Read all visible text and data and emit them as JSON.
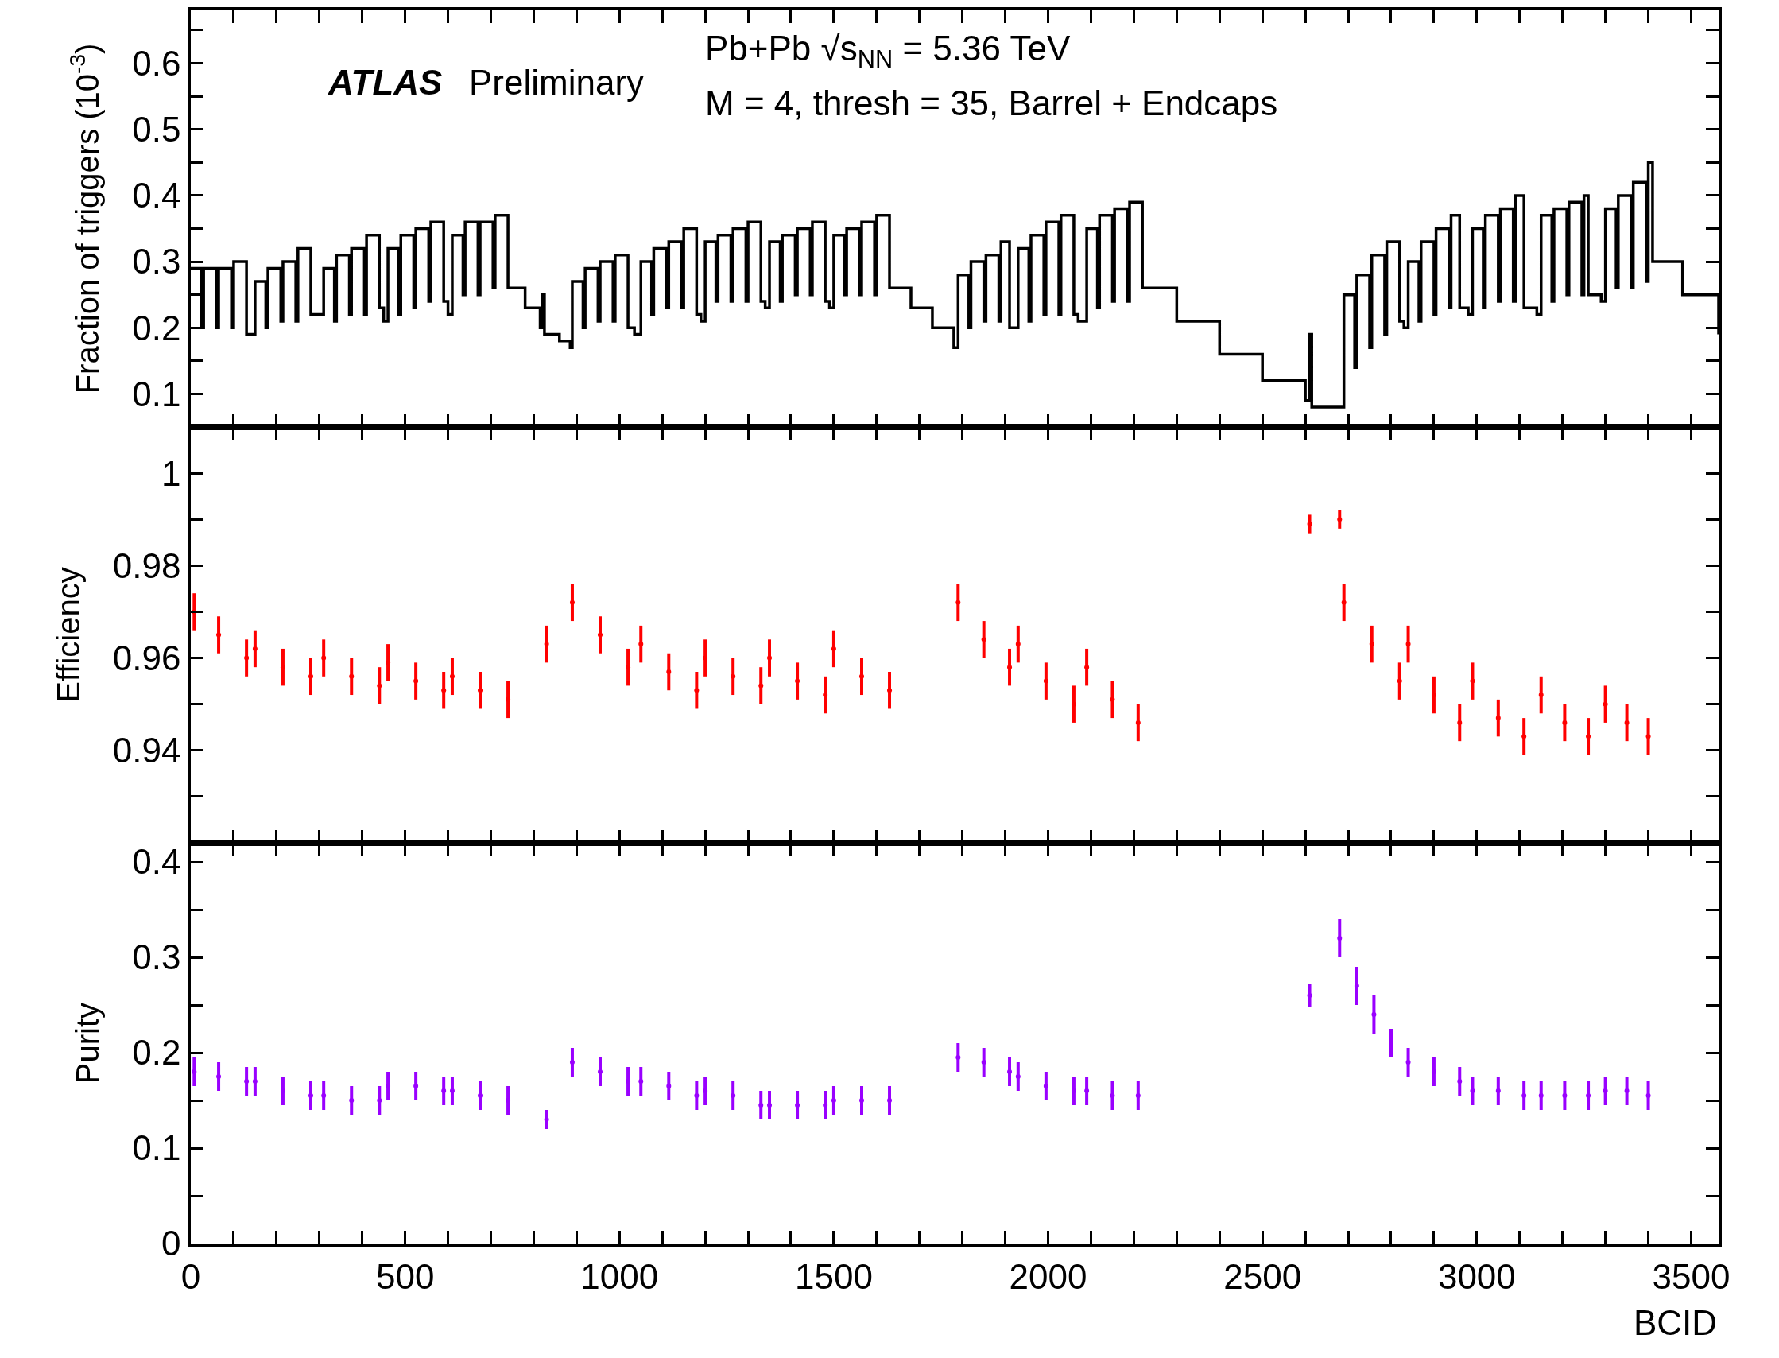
{
  "chart_data": [
    {
      "type": "step",
      "color": "#000000",
      "line_style": "solid",
      "ylabel": "Fraction of triggers (10$^{-3}$)",
      "annotations": [
        "ATLAS",
        "Preliminary",
        "Pb+Pb √s$_{NN}$ = 5.36 TeV",
        "M = 4, thresh = 35, Barrel + Endcaps"
      ],
      "x": [
        0,
        25,
        30,
        60,
        65,
        95,
        100,
        130,
        150,
        175,
        180,
        210,
        215,
        245,
        250,
        280,
        310,
        335,
        340,
        370,
        375,
        405,
        410,
        440,
        450,
        460,
        485,
        490,
        520,
        525,
        555,
        560,
        590,
        600,
        610,
        635,
        640,
        670,
        675,
        705,
        710,
        740,
        780,
        815,
        820,
        825,
        860,
        885,
        890,
        915,
        920,
        950,
        955,
        985,
        990,
        1020,
        1035,
        1050,
        1075,
        1080,
        1110,
        1115,
        1145,
        1150,
        1180,
        1190,
        1200,
        1225,
        1230,
        1260,
        1265,
        1295,
        1300,
        1330,
        1340,
        1350,
        1375,
        1380,
        1410,
        1415,
        1445,
        1450,
        1480,
        1490,
        1500,
        1525,
        1530,
        1560,
        1565,
        1595,
        1600,
        1630,
        1680,
        1730,
        1780,
        1790,
        1815,
        1820,
        1850,
        1855,
        1885,
        1890,
        1910,
        1930,
        1955,
        1960,
        1990,
        1995,
        2025,
        2030,
        2060,
        2070,
        2090,
        2115,
        2120,
        2150,
        2155,
        2185,
        2190,
        2220,
        2300,
        2400,
        2500,
        2600,
        2610,
        2615,
        2680,
        2690,
        2715,
        2720,
        2750,
        2755,
        2785,
        2790,
        2820,
        2830,
        2840,
        2865,
        2870,
        2900,
        2905,
        2935,
        2940,
        2960,
        2980,
        2990,
        3015,
        3020,
        3050,
        3055,
        3085,
        3090,
        3110,
        3140,
        3150,
        3175,
        3180,
        3210,
        3215,
        3245,
        3250,
        3260,
        3290,
        3300,
        3325,
        3330,
        3360,
        3365,
        3395,
        3400,
        3410,
        3480,
        3564
      ],
      "values": [
        0.29,
        0.2,
        0.29,
        0.2,
        0.29,
        0.2,
        0.3,
        0.19,
        0.27,
        0.2,
        0.29,
        0.21,
        0.3,
        0.21,
        0.32,
        0.22,
        0.29,
        0.21,
        0.31,
        0.22,
        0.32,
        0.22,
        0.34,
        0.23,
        0.21,
        0.32,
        0.22,
        0.34,
        0.23,
        0.35,
        0.24,
        0.36,
        0.24,
        0.22,
        0.34,
        0.25,
        0.36,
        0.25,
        0.36,
        0.26,
        0.37,
        0.26,
        0.23,
        0.2,
        0.25,
        0.19,
        0.18,
        0.17,
        0.27,
        0.2,
        0.29,
        0.21,
        0.3,
        0.21,
        0.31,
        0.2,
        0.19,
        0.3,
        0.22,
        0.32,
        0.23,
        0.33,
        0.23,
        0.35,
        0.22,
        0.21,
        0.33,
        0.24,
        0.34,
        0.24,
        0.35,
        0.24,
        0.36,
        0.24,
        0.23,
        0.33,
        0.24,
        0.34,
        0.25,
        0.35,
        0.25,
        0.36,
        0.24,
        0.23,
        0.34,
        0.25,
        0.35,
        0.25,
        0.36,
        0.25,
        0.37,
        0.26,
        0.23,
        0.2,
        0.17,
        0.28,
        0.2,
        0.3,
        0.21,
        0.31,
        0.21,
        0.33,
        0.2,
        0.32,
        0.21,
        0.34,
        0.22,
        0.36,
        0.22,
        0.37,
        0.22,
        0.21,
        0.35,
        0.23,
        0.37,
        0.24,
        0.38,
        0.24,
        0.39,
        0.26,
        0.21,
        0.16,
        0.12,
        0.09,
        0.19,
        0.08,
        0.08,
        0.25,
        0.14,
        0.28,
        0.17,
        0.31,
        0.19,
        0.33,
        0.21,
        0.2,
        0.3,
        0.21,
        0.33,
        0.22,
        0.35,
        0.23,
        0.37,
        0.23,
        0.22,
        0.35,
        0.23,
        0.37,
        0.24,
        0.38,
        0.24,
        0.4,
        0.23,
        0.22,
        0.37,
        0.24,
        0.38,
        0.25,
        0.39,
        0.25,
        0.4,
        0.25,
        0.24,
        0.38,
        0.26,
        0.4,
        0.26,
        0.42,
        0.27,
        0.45,
        0.3,
        0.25,
        0.19
      ],
      "xlim": [
        0,
        3564
      ],
      "xticks": [
        0,
        {
          "value": 100,
          "label": null
        },
        {
          "value": 200,
          "label": null
        },
        {
          "value": 300,
          "label": null
        },
        {
          "value": 400,
          "label": null
        },
        500,
        {
          "value": 600,
          "label": null
        },
        {
          "value": 700,
          "label": null
        },
        {
          "value": 800,
          "label": null
        },
        {
          "value": 900,
          "label": null
        },
        1000,
        {
          "value": 1100,
          "label": null
        },
        {
          "value": 1200,
          "label": null
        },
        {
          "value": 1300,
          "label": null
        },
        {
          "value": 1400,
          "label": null
        },
        1500,
        {
          "value": 1600,
          "label": null
        },
        {
          "value": 1700,
          "label": null
        },
        {
          "value": 1800,
          "label": null
        },
        {
          "value": 1900,
          "label": null
        },
        2000,
        {
          "value": 2100,
          "label": null
        },
        {
          "value": 2200,
          "label": null
        },
        {
          "value": 2300,
          "label": null
        },
        {
          "value": 2400,
          "label": null
        },
        2500,
        {
          "value": 2600,
          "label": null
        },
        {
          "value": 2700,
          "label": null
        },
        {
          "value": 2800,
          "label": null
        },
        {
          "value": 2900,
          "label": null
        },
        3000,
        {
          "value": 3100,
          "label": null
        },
        {
          "value": 3200,
          "label": null
        },
        {
          "value": 3300,
          "label": null
        },
        {
          "value": 3400,
          "label": null
        },
        3500
      ],
      "ylim": [
        0.05,
        0.68
      ],
      "yticks": [
        0.1,
        {
          "value": 0.15,
          "label": null
        },
        0.2,
        {
          "value": 0.25,
          "label": null
        },
        0.3,
        {
          "value": 0.35,
          "label": null
        },
        0.4,
        {
          "value": 0.45,
          "label": null
        },
        0.5,
        {
          "value": 0.55,
          "label": null
        },
        0.6,
        {
          "value": 0.65,
          "label": null
        }
      ],
      "tick_labels": "y"
    },
    {
      "type": "scatter",
      "color": "#ff0000",
      "marker": "none",
      "ylabel": "Efficiency",
      "x": [
        8,
        65,
        130,
        150,
        215,
        280,
        310,
        375,
        440,
        460,
        525,
        590,
        610,
        675,
        740,
        830,
        890,
        955,
        1020,
        1050,
        1115,
        1180,
        1200,
        1265,
        1330,
        1350,
        1415,
        1480,
        1500,
        1565,
        1630,
        1790,
        1850,
        1910,
        1930,
        1995,
        2060,
        2090,
        2150,
        2210,
        2610,
        2680,
        2690,
        2755,
        2820,
        2840,
        2900,
        2960,
        2990,
        3050,
        3110,
        3150,
        3205,
        3260,
        3300,
        3350,
        3400
      ],
      "values": [
        0.97,
        0.965,
        0.96,
        0.962,
        0.958,
        0.956,
        0.96,
        0.956,
        0.954,
        0.959,
        0.955,
        0.953,
        0.956,
        0.953,
        0.951,
        0.963,
        0.972,
        0.965,
        0.958,
        0.963,
        0.957,
        0.953,
        0.96,
        0.956,
        0.954,
        0.96,
        0.955,
        0.952,
        0.962,
        0.956,
        0.953,
        0.972,
        0.964,
        0.958,
        0.963,
        0.955,
        0.95,
        0.958,
        0.951,
        0.946,
        0.989,
        0.99,
        0.972,
        0.963,
        0.955,
        0.963,
        0.952,
        0.946,
        0.955,
        0.947,
        0.943,
        0.952,
        0.946,
        0.943,
        0.95,
        0.946,
        0.943
      ],
      "errors": [
        0.004,
        0.004,
        0.004,
        0.004,
        0.004,
        0.004,
        0.004,
        0.004,
        0.004,
        0.004,
        0.004,
        0.004,
        0.004,
        0.004,
        0.004,
        0.004,
        0.004,
        0.004,
        0.004,
        0.004,
        0.004,
        0.004,
        0.004,
        0.004,
        0.004,
        0.004,
        0.004,
        0.004,
        0.004,
        0.004,
        0.004,
        0.004,
        0.004,
        0.004,
        0.004,
        0.004,
        0.004,
        0.004,
        0.004,
        0.004,
        0.002,
        0.002,
        0.004,
        0.004,
        0.004,
        0.004,
        0.004,
        0.004,
        0.004,
        0.004,
        0.004,
        0.004,
        0.004,
        0.004,
        0.004,
        0.004,
        0.004
      ],
      "xlim": [
        0,
        3564
      ],
      "xticks": [
        0,
        {
          "value": 100,
          "label": null
        },
        {
          "value": 200,
          "label": null
        },
        {
          "value": 300,
          "label": null
        },
        {
          "value": 400,
          "label": null
        },
        500,
        {
          "value": 600,
          "label": null
        },
        {
          "value": 700,
          "label": null
        },
        {
          "value": 800,
          "label": null
        },
        {
          "value": 900,
          "label": null
        },
        1000,
        {
          "value": 1100,
          "label": null
        },
        {
          "value": 1200,
          "label": null
        },
        {
          "value": 1300,
          "label": null
        },
        {
          "value": 1400,
          "label": null
        },
        1500,
        {
          "value": 1600,
          "label": null
        },
        {
          "value": 1700,
          "label": null
        },
        {
          "value": 1800,
          "label": null
        },
        {
          "value": 1900,
          "label": null
        },
        2000,
        {
          "value": 2100,
          "label": null
        },
        {
          "value": 2200,
          "label": null
        },
        {
          "value": 2300,
          "label": null
        },
        {
          "value": 2400,
          "label": null
        },
        2500,
        {
          "value": 2600,
          "label": null
        },
        {
          "value": 2700,
          "label": null
        },
        {
          "value": 2800,
          "label": null
        },
        {
          "value": 2900,
          "label": null
        },
        3000,
        {
          "value": 3100,
          "label": null
        },
        {
          "value": 3200,
          "label": null
        },
        {
          "value": 3300,
          "label": null
        },
        {
          "value": 3400,
          "label": null
        },
        3500
      ],
      "ylim": [
        0.92,
        1.01
      ],
      "yticks": [
        {
          "value": 0.93,
          "label": null
        },
        0.94,
        {
          "value": 0.95,
          "label": null
        },
        0.96,
        {
          "value": 0.97,
          "label": null
        },
        0.98,
        {
          "value": 0.99,
          "label": null
        },
        1
      ],
      "tick_labels": "y"
    },
    {
      "type": "scatter",
      "color": "#9900ff",
      "marker": "none",
      "ylabel": "Purity",
      "xlabel": "BCID",
      "x": [
        8,
        65,
        130,
        150,
        215,
        280,
        310,
        375,
        440,
        460,
        525,
        590,
        610,
        675,
        740,
        830,
        890,
        955,
        1020,
        1050,
        1115,
        1180,
        1200,
        1265,
        1330,
        1350,
        1415,
        1480,
        1500,
        1565,
        1630,
        1790,
        1850,
        1910,
        1930,
        1995,
        2060,
        2090,
        2150,
        2210,
        2610,
        2680,
        2720,
        2760,
        2800,
        2840,
        2900,
        2960,
        2990,
        3050,
        3110,
        3150,
        3205,
        3260,
        3300,
        3350,
        3400
      ],
      "values": [
        0.18,
        0.175,
        0.17,
        0.17,
        0.16,
        0.155,
        0.155,
        0.15,
        0.15,
        0.165,
        0.165,
        0.16,
        0.16,
        0.155,
        0.15,
        0.13,
        0.19,
        0.18,
        0.17,
        0.17,
        0.165,
        0.155,
        0.16,
        0.155,
        0.145,
        0.145,
        0.145,
        0.145,
        0.15,
        0.15,
        0.15,
        0.195,
        0.19,
        0.18,
        0.175,
        0.165,
        0.16,
        0.16,
        0.155,
        0.155,
        0.26,
        0.32,
        0.27,
        0.24,
        0.21,
        0.19,
        0.18,
        0.17,
        0.16,
        0.16,
        0.155,
        0.155,
        0.155,
        0.155,
        0.16,
        0.16,
        0.155
      ],
      "errors": [
        0.015,
        0.015,
        0.015,
        0.015,
        0.015,
        0.015,
        0.015,
        0.015,
        0.015,
        0.015,
        0.015,
        0.015,
        0.015,
        0.015,
        0.015,
        0.01,
        0.015,
        0.015,
        0.015,
        0.015,
        0.015,
        0.015,
        0.015,
        0.015,
        0.015,
        0.015,
        0.015,
        0.015,
        0.015,
        0.015,
        0.015,
        0.015,
        0.015,
        0.015,
        0.015,
        0.015,
        0.015,
        0.015,
        0.015,
        0.015,
        0.012,
        0.02,
        0.02,
        0.02,
        0.015,
        0.015,
        0.015,
        0.015,
        0.015,
        0.015,
        0.015,
        0.015,
        0.015,
        0.015,
        0.015,
        0.015,
        0.015
      ],
      "xlim": [
        0,
        3564
      ],
      "xticks": [
        0,
        {
          "value": 100,
          "label": null
        },
        {
          "value": 200,
          "label": null
        },
        {
          "value": 300,
          "label": null
        },
        {
          "value": 400,
          "label": null
        },
        500,
        {
          "value": 600,
          "label": null
        },
        {
          "value": 700,
          "label": null
        },
        {
          "value": 800,
          "label": null
        },
        {
          "value": 900,
          "label": null
        },
        1000,
        {
          "value": 1100,
          "label": null
        },
        {
          "value": 1200,
          "label": null
        },
        {
          "value": 1300,
          "label": null
        },
        {
          "value": 1400,
          "label": null
        },
        1500,
        {
          "value": 1600,
          "label": null
        },
        {
          "value": 1700,
          "label": null
        },
        {
          "value": 1800,
          "label": null
        },
        {
          "value": 1900,
          "label": null
        },
        2000,
        {
          "value": 2100,
          "label": null
        },
        {
          "value": 2200,
          "label": null
        },
        {
          "value": 2300,
          "label": null
        },
        {
          "value": 2400,
          "label": null
        },
        2500,
        {
          "value": 2600,
          "label": null
        },
        {
          "value": 2700,
          "label": null
        },
        {
          "value": 2800,
          "label": null
        },
        {
          "value": 2900,
          "label": null
        },
        3000,
        {
          "value": 3100,
          "label": null
        },
        {
          "value": 3200,
          "label": null
        },
        {
          "value": 3300,
          "label": null
        },
        {
          "value": 3400,
          "label": null
        },
        3500
      ],
      "ylim": [
        0,
        0.42
      ],
      "yticks": [
        0,
        {
          "value": 0.05,
          "label": null
        },
        0.1,
        {
          "value": 0.15,
          "label": null
        },
        0.2,
        {
          "value": 0.25,
          "label": null
        },
        0.3,
        {
          "value": 0.35,
          "label": null
        },
        0.4
      ],
      "tick_labels": true
    }
  ]
}
